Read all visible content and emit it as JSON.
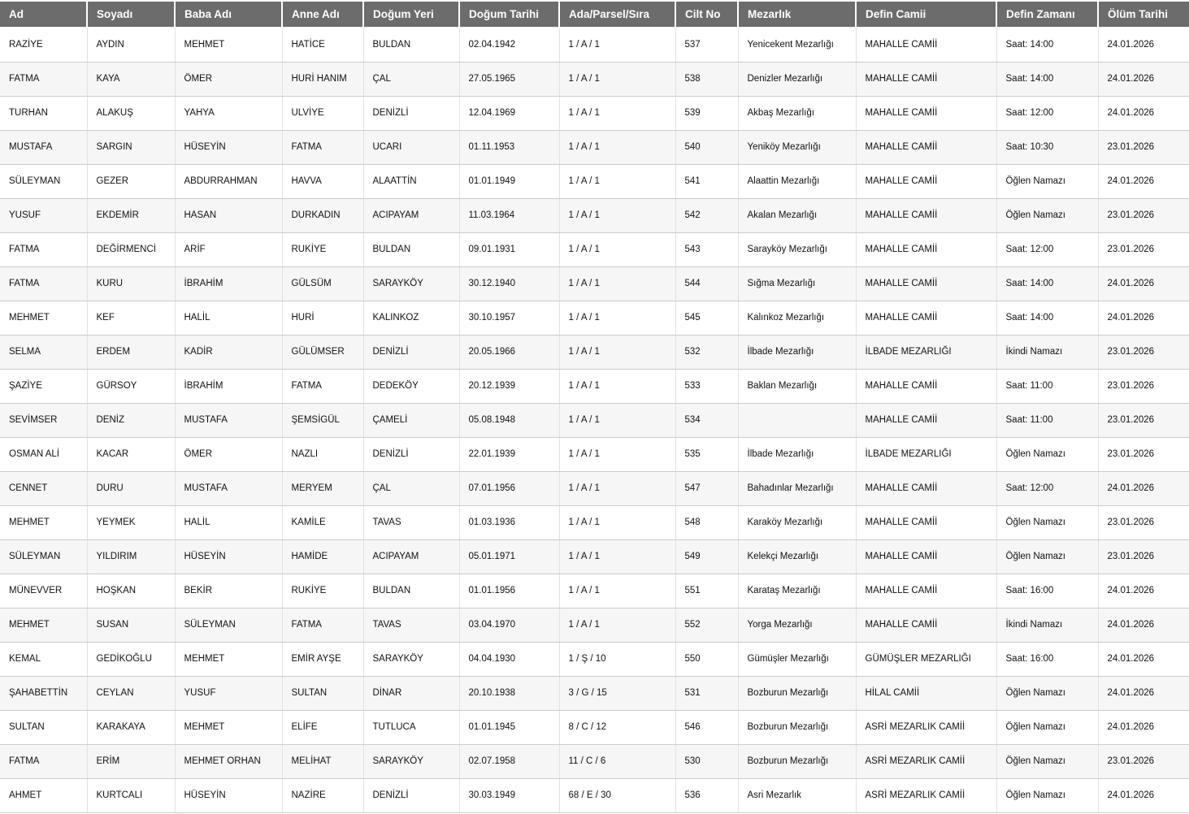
{
  "theme": {
    "header_bg": "#6c6c6c",
    "header_fg": "#ffffff",
    "row_alt_bg": "#f6f6f6",
    "border_h": "#cccccc",
    "border_v": "#e2e2e2"
  },
  "table": {
    "columns": [
      {
        "key": "ad",
        "label": "Ad"
      },
      {
        "key": "soyadi",
        "label": "Soyadı"
      },
      {
        "key": "baba_adi",
        "label": "Baba Adı"
      },
      {
        "key": "anne_adi",
        "label": "Anne Adı"
      },
      {
        "key": "dogum_yeri",
        "label": "Doğum Yeri"
      },
      {
        "key": "dogum_tarihi",
        "label": "Doğum Tarihi"
      },
      {
        "key": "ada_parsel_sira",
        "label": "Ada/Parsel/Sıra"
      },
      {
        "key": "cilt_no",
        "label": "Cilt No"
      },
      {
        "key": "mezarlik",
        "label": "Mezarlık"
      },
      {
        "key": "defin_camii",
        "label": "Defin Camii"
      },
      {
        "key": "defin_zamani",
        "label": "Defin Zamanı"
      },
      {
        "key": "olum_tarihi",
        "label": "Ölüm Tarihi"
      }
    ],
    "rows": [
      {
        "ad": "RAZİYE",
        "soyadi": "AYDIN",
        "baba_adi": "MEHMET",
        "anne_adi": "HATİCE",
        "dogum_yeri": "BULDAN",
        "dogum_tarihi": "02.04.1942",
        "ada_parsel_sira": "1 / A / 1",
        "cilt_no": "537",
        "mezarlik": "Yenicekent Mezarlığı",
        "defin_camii": "MAHALLE CAMİİ",
        "defin_zamani": "Saat: 14:00",
        "olum_tarihi": "24.01.2026"
      },
      {
        "ad": "FATMA",
        "soyadi": "KAYA",
        "baba_adi": "ÖMER",
        "anne_adi": "HURİ HANIM",
        "dogum_yeri": "ÇAL",
        "dogum_tarihi": "27.05.1965",
        "ada_parsel_sira": "1 / A / 1",
        "cilt_no": "538",
        "mezarlik": "Denizler Mezarlığı",
        "defin_camii": "MAHALLE CAMİİ",
        "defin_zamani": "Saat: 14:00",
        "olum_tarihi": "24.01.2026"
      },
      {
        "ad": "TURHAN",
        "soyadi": "ALAKUŞ",
        "baba_adi": "YAHYA",
        "anne_adi": "ULVİYE",
        "dogum_yeri": "DENİZLİ",
        "dogum_tarihi": "12.04.1969",
        "ada_parsel_sira": "1 / A / 1",
        "cilt_no": "539",
        "mezarlik": "Akbaş Mezarlığı",
        "defin_camii": "MAHALLE CAMİİ",
        "defin_zamani": "Saat: 12:00",
        "olum_tarihi": "24.01.2026"
      },
      {
        "ad": "MUSTAFA",
        "soyadi": "SARGIN",
        "baba_adi": "HÜSEYİN",
        "anne_adi": "FATMA",
        "dogum_yeri": "UCARI",
        "dogum_tarihi": "01.11.1953",
        "ada_parsel_sira": "1 / A / 1",
        "cilt_no": "540",
        "mezarlik": "Yeniköy Mezarlığı",
        "defin_camii": "MAHALLE CAMİİ",
        "defin_zamani": "Saat: 10:30",
        "olum_tarihi": "23.01.2026"
      },
      {
        "ad": "SÜLEYMAN",
        "soyadi": "GEZER",
        "baba_adi": "ABDURRAHMAN",
        "anne_adi": "HAVVA",
        "dogum_yeri": "ALAATTİN",
        "dogum_tarihi": "01.01.1949",
        "ada_parsel_sira": "1 / A / 1",
        "cilt_no": "541",
        "mezarlik": "Alaattin Mezarlığı",
        "defin_camii": "MAHALLE CAMİİ",
        "defin_zamani": "Öğlen Namazı",
        "olum_tarihi": "24.01.2026"
      },
      {
        "ad": "YUSUF",
        "soyadi": "EKDEMİR",
        "baba_adi": "HASAN",
        "anne_adi": "DURKADIN",
        "dogum_yeri": "ACIPAYAM",
        "dogum_tarihi": "11.03.1964",
        "ada_parsel_sira": "1 / A / 1",
        "cilt_no": "542",
        "mezarlik": "Akalan Mezarlığı",
        "defin_camii": "MAHALLE CAMİİ",
        "defin_zamani": "Öğlen Namazı",
        "olum_tarihi": "23.01.2026"
      },
      {
        "ad": "FATMA",
        "soyadi": "DEĞİRMENCİ",
        "baba_adi": "ARİF",
        "anne_adi": "RUKİYE",
        "dogum_yeri": "BULDAN",
        "dogum_tarihi": "09.01.1931",
        "ada_parsel_sira": "1 / A / 1",
        "cilt_no": "543",
        "mezarlik": "Sarayköy Mezarlığı",
        "defin_camii": "MAHALLE CAMİİ",
        "defin_zamani": "Saat: 12:00",
        "olum_tarihi": "23.01.2026"
      },
      {
        "ad": "FATMA",
        "soyadi": "KURU",
        "baba_adi": "İBRAHİM",
        "anne_adi": "GÜLSÜM",
        "dogum_yeri": "SARAYKÖY",
        "dogum_tarihi": "30.12.1940",
        "ada_parsel_sira": "1 / A / 1",
        "cilt_no": "544",
        "mezarlik": "Sığma Mezarlığı",
        "defin_camii": "MAHALLE CAMİİ",
        "defin_zamani": "Saat: 14:00",
        "olum_tarihi": "24.01.2026"
      },
      {
        "ad": "MEHMET",
        "soyadi": "KEF",
        "baba_adi": "HALİL",
        "anne_adi": "HURİ",
        "dogum_yeri": "KALINKOZ",
        "dogum_tarihi": "30.10.1957",
        "ada_parsel_sira": "1 / A / 1",
        "cilt_no": "545",
        "mezarlik": "Kalınkoz Mezarlığı",
        "defin_camii": "MAHALLE CAMİİ",
        "defin_zamani": "Saat: 14:00",
        "olum_tarihi": "24.01.2026"
      },
      {
        "ad": "SELMA",
        "soyadi": "ERDEM",
        "baba_adi": "KADİR",
        "anne_adi": "GÜLÜMSER",
        "dogum_yeri": "DENİZLİ",
        "dogum_tarihi": "20.05.1966",
        "ada_parsel_sira": "1 / A / 1",
        "cilt_no": "532",
        "mezarlik": "İlbade Mezarlığı",
        "defin_camii": "İLBADE MEZARLIĞI",
        "defin_zamani": "İkindi Namazı",
        "olum_tarihi": "23.01.2026"
      },
      {
        "ad": "ŞAZİYE",
        "soyadi": "GÜRSOY",
        "baba_adi": "İBRAHİM",
        "anne_adi": "FATMA",
        "dogum_yeri": "DEDEKÖY",
        "dogum_tarihi": "20.12.1939",
        "ada_parsel_sira": "1 / A / 1",
        "cilt_no": "533",
        "mezarlik": "Baklan Mezarlığı",
        "defin_camii": "MAHALLE CAMİİ",
        "defin_zamani": "Saat: 11:00",
        "olum_tarihi": "23.01.2026"
      },
      {
        "ad": "SEVİMSER",
        "soyadi": "DENİZ",
        "baba_adi": "MUSTAFA",
        "anne_adi": "ŞEMSİGÜL",
        "dogum_yeri": "ÇAMELİ",
        "dogum_tarihi": "05.08.1948",
        "ada_parsel_sira": "1 / A / 1",
        "cilt_no": "534",
        "mezarlik": "",
        "defin_camii": "MAHALLE CAMİİ",
        "defin_zamani": "Saat: 11:00",
        "olum_tarihi": "23.01.2026"
      },
      {
        "ad": "OSMAN ALİ",
        "soyadi": "KACAR",
        "baba_adi": "ÖMER",
        "anne_adi": "NAZLI",
        "dogum_yeri": "DENİZLİ",
        "dogum_tarihi": "22.01.1939",
        "ada_parsel_sira": "1 / A / 1",
        "cilt_no": "535",
        "mezarlik": "İlbade Mezarlığı",
        "defin_camii": "İLBADE MEZARLIĞI",
        "defin_zamani": "Öğlen Namazı",
        "olum_tarihi": "23.01.2026"
      },
      {
        "ad": "CENNET",
        "soyadi": "DURU",
        "baba_adi": "MUSTAFA",
        "anne_adi": "MERYEM",
        "dogum_yeri": "ÇAL",
        "dogum_tarihi": "07.01.1956",
        "ada_parsel_sira": "1 / A / 1",
        "cilt_no": "547",
        "mezarlik": "Bahadınlar Mezarlığı",
        "defin_camii": "MAHALLE CAMİİ",
        "defin_zamani": "Saat: 12:00",
        "olum_tarihi": "24.01.2026"
      },
      {
        "ad": "MEHMET",
        "soyadi": "YEYMEK",
        "baba_adi": "HALİL",
        "anne_adi": "KAMİLE",
        "dogum_yeri": "TAVAS",
        "dogum_tarihi": "01.03.1936",
        "ada_parsel_sira": "1 / A / 1",
        "cilt_no": "548",
        "mezarlik": "Karaköy Mezarlığı",
        "defin_camii": "MAHALLE CAMİİ",
        "defin_zamani": "Öğlen Namazı",
        "olum_tarihi": "23.01.2026"
      },
      {
        "ad": "SÜLEYMAN",
        "soyadi": "YILDIRIM",
        "baba_adi": "HÜSEYİN",
        "anne_adi": "HAMİDE",
        "dogum_yeri": "ACIPAYAM",
        "dogum_tarihi": "05.01.1971",
        "ada_parsel_sira": "1 / A / 1",
        "cilt_no": "549",
        "mezarlik": "Kelekçi Mezarlığı",
        "defin_camii": "MAHALLE CAMİİ",
        "defin_zamani": "Öğlen Namazı",
        "olum_tarihi": "23.01.2026"
      },
      {
        "ad": "MÜNEVVER",
        "soyadi": "HOŞKAN",
        "baba_adi": "BEKİR",
        "anne_adi": "RUKİYE",
        "dogum_yeri": "BULDAN",
        "dogum_tarihi": "01.01.1956",
        "ada_parsel_sira": "1 / A / 1",
        "cilt_no": "551",
        "mezarlik": "Karataş Mezarlığı",
        "defin_camii": "MAHALLE CAMİİ",
        "defin_zamani": "Saat: 16:00",
        "olum_tarihi": "24.01.2026"
      },
      {
        "ad": "MEHMET",
        "soyadi": "SUSAN",
        "baba_adi": "SÜLEYMAN",
        "anne_adi": "FATMA",
        "dogum_yeri": "TAVAS",
        "dogum_tarihi": "03.04.1970",
        "ada_parsel_sira": "1 / A / 1",
        "cilt_no": "552",
        "mezarlik": "Yorga Mezarlığı",
        "defin_camii": "MAHALLE CAMİİ",
        "defin_zamani": "İkindi Namazı",
        "olum_tarihi": "24.01.2026"
      },
      {
        "ad": "KEMAL",
        "soyadi": "GEDİKOĞLU",
        "baba_adi": "MEHMET",
        "anne_adi": "EMİR AYŞE",
        "dogum_yeri": "SARAYKÖY",
        "dogum_tarihi": "04.04.1930",
        "ada_parsel_sira": "1 / Ş / 10",
        "cilt_no": "550",
        "mezarlik": "Gümüşler Mezarlığı",
        "defin_camii": "GÜMÜŞLER MEZARLIĞI",
        "defin_zamani": "Saat: 16:00",
        "olum_tarihi": "24.01.2026"
      },
      {
        "ad": "ŞAHABETTİN",
        "soyadi": "CEYLAN",
        "baba_adi": "YUSUF",
        "anne_adi": "SULTAN",
        "dogum_yeri": "DİNAR",
        "dogum_tarihi": "20.10.1938",
        "ada_parsel_sira": "3 / G / 15",
        "cilt_no": "531",
        "mezarlik": "Bozburun Mezarlığı",
        "defin_camii": "HİLAL CAMİİ",
        "defin_zamani": "Öğlen Namazı",
        "olum_tarihi": "24.01.2026"
      },
      {
        "ad": "SULTAN",
        "soyadi": "KARAKAYA",
        "baba_adi": "MEHMET",
        "anne_adi": "ELİFE",
        "dogum_yeri": "TUTLUCA",
        "dogum_tarihi": "01.01.1945",
        "ada_parsel_sira": "8 / C / 12",
        "cilt_no": "546",
        "mezarlik": "Bozburun Mezarlığı",
        "defin_camii": "ASRİ MEZARLIK CAMİİ",
        "defin_zamani": "Öğlen Namazı",
        "olum_tarihi": "24.01.2026"
      },
      {
        "ad": "FATMA",
        "soyadi": "ERİM",
        "baba_adi": "MEHMET ORHAN",
        "anne_adi": "MELİHAT",
        "dogum_yeri": "SARAYKÖY",
        "dogum_tarihi": "02.07.1958",
        "ada_parsel_sira": "11 / C / 6",
        "cilt_no": "530",
        "mezarlik": "Bozburun Mezarlığı",
        "defin_camii": "ASRİ MEZARLIK CAMİİ",
        "defin_zamani": "Öğlen Namazı",
        "olum_tarihi": "23.01.2026"
      },
      {
        "ad": "AHMET",
        "soyadi": "KURTCALI",
        "baba_adi": "HÜSEYİN",
        "anne_adi": "NAZİRE",
        "dogum_yeri": "DENİZLİ",
        "dogum_tarihi": "30.03.1949",
        "ada_parsel_sira": "68 / E / 30",
        "cilt_no": "536",
        "mezarlik": "Asri Mezarlık",
        "defin_camii": "ASRİ MEZARLIK CAMİİ",
        "defin_zamani": "Öğlen Namazı",
        "olum_tarihi": "24.01.2026"
      }
    ]
  }
}
